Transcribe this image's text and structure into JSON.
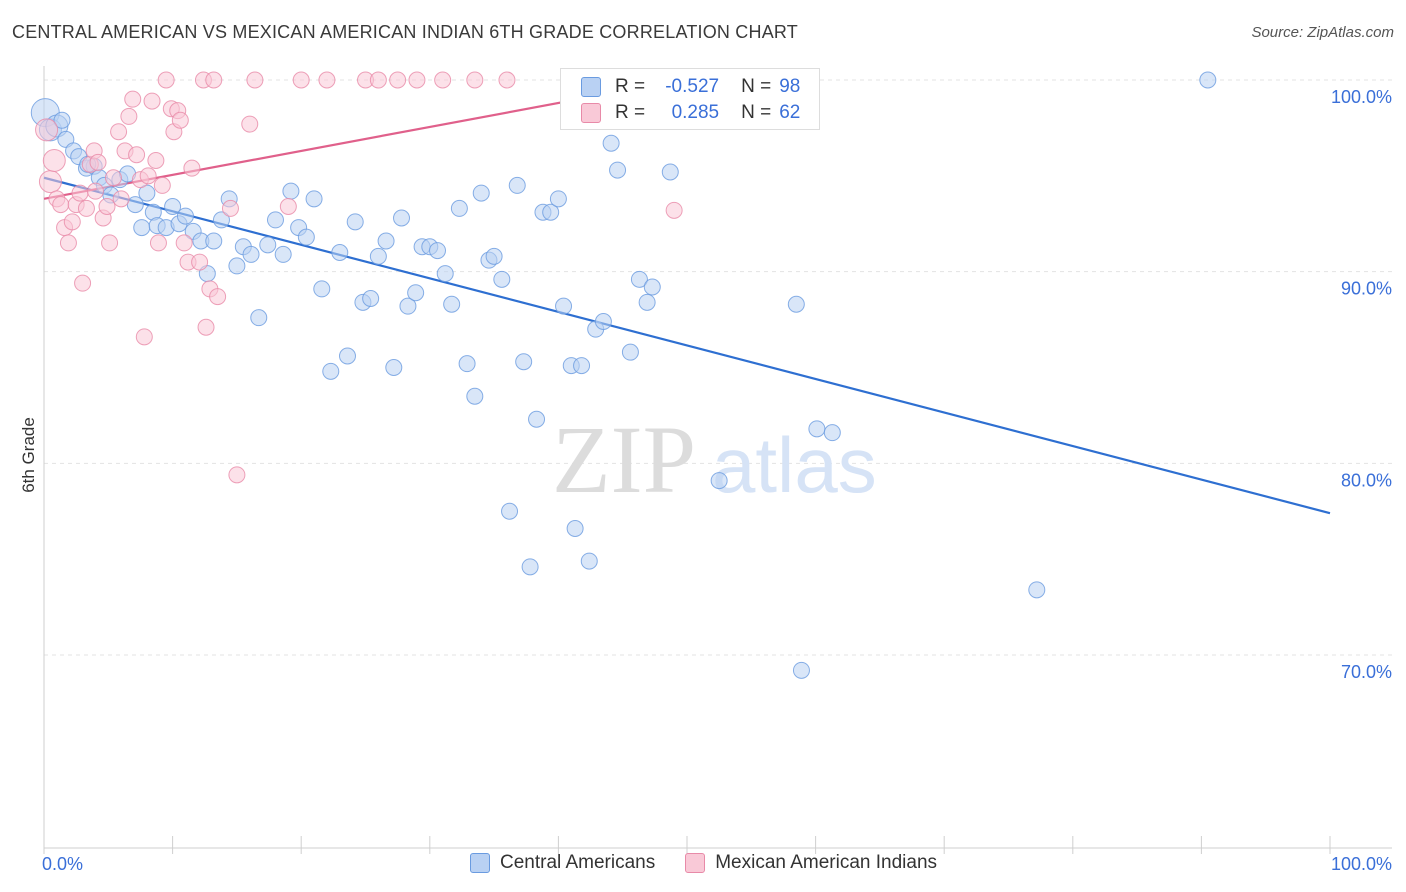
{
  "title": "CENTRAL AMERICAN VS MEXICAN AMERICAN INDIAN 6TH GRADE CORRELATION CHART",
  "source": "Source: ZipAtlas.com",
  "watermark": {
    "zip": "ZIP",
    "atlas": "atlas"
  },
  "legend": {
    "rows": [
      {
        "r_label": "R =",
        "r_value": "-0.527",
        "n_label": "N =",
        "n_value": "98",
        "color": "#a8c6f0",
        "border": "#5a8fdc"
      },
      {
        "r_label": "R =",
        "r_value": "0.285",
        "n_label": "N =",
        "n_value": "62",
        "color": "#f7bfd0",
        "border": "#e67fa0"
      }
    ]
  },
  "bottom_legend": [
    "Central Americans",
    "Mexican American Indians"
  ],
  "chart_data": {
    "type": "scatter",
    "title": "CENTRAL AMERICAN VS MEXICAN AMERICAN INDIAN 6TH GRADE CORRELATION CHART",
    "xlabel": "",
    "ylabel": "6th Grade",
    "xlim": [
      0,
      100
    ],
    "ylim": [
      60,
      101
    ],
    "x_tick_labels": [
      "0.0%",
      "100.0%"
    ],
    "y_ticks": [
      70,
      80,
      90,
      100
    ],
    "y_tick_labels": [
      "70.0%",
      "80.0%",
      "90.0%",
      "100.0%"
    ],
    "grid": true,
    "legend_position": "top-center",
    "series": [
      {
        "name": "Central Americans",
        "color": "#6a9be0",
        "fill": "#b9d1f3",
        "trend": {
          "x": [
            0,
            100
          ],
          "y": [
            94.9,
            77.4
          ]
        },
        "points": [
          [
            0.1,
            98.3
          ],
          [
            0.5,
            97.4
          ],
          [
            1.0,
            97.6
          ],
          [
            1.7,
            96.9
          ],
          [
            2.3,
            96.3
          ],
          [
            2.7,
            96.0
          ],
          [
            3.3,
            95.4
          ],
          [
            3.9,
            95.5
          ],
          [
            4.3,
            94.9
          ],
          [
            4.7,
            94.5
          ],
          [
            5.2,
            94.0
          ],
          [
            5.9,
            94.8
          ],
          [
            6.5,
            95.1
          ],
          [
            7.1,
            93.5
          ],
          [
            7.6,
            92.3
          ],
          [
            8.0,
            94.1
          ],
          [
            8.5,
            93.1
          ],
          [
            8.8,
            92.4
          ],
          [
            9.5,
            92.3
          ],
          [
            10.0,
            93.4
          ],
          [
            10.5,
            92.5
          ],
          [
            11.0,
            92.9
          ],
          [
            11.6,
            92.1
          ],
          [
            12.2,
            91.6
          ],
          [
            12.7,
            89.9
          ],
          [
            13.2,
            91.6
          ],
          [
            13.8,
            92.7
          ],
          [
            14.4,
            93.8
          ],
          [
            15.0,
            90.3
          ],
          [
            15.5,
            91.3
          ],
          [
            16.1,
            90.9
          ],
          [
            16.7,
            87.6
          ],
          [
            17.4,
            91.4
          ],
          [
            18.0,
            92.7
          ],
          [
            18.6,
            90.9
          ],
          [
            19.2,
            94.2
          ],
          [
            19.8,
            92.3
          ],
          [
            20.4,
            91.8
          ],
          [
            21.0,
            93.8
          ],
          [
            21.6,
            89.1
          ],
          [
            22.3,
            84.8
          ],
          [
            23.0,
            91.0
          ],
          [
            23.6,
            85.6
          ],
          [
            24.2,
            92.6
          ],
          [
            24.8,
            88.4
          ],
          [
            25.4,
            88.6
          ],
          [
            26.0,
            90.8
          ],
          [
            26.6,
            91.6
          ],
          [
            27.2,
            85.0
          ],
          [
            27.8,
            92.8
          ],
          [
            28.3,
            88.2
          ],
          [
            28.9,
            88.9
          ],
          [
            29.4,
            91.3
          ],
          [
            30.0,
            91.3
          ],
          [
            30.6,
            91.1
          ],
          [
            31.2,
            89.9
          ],
          [
            31.7,
            88.3
          ],
          [
            32.3,
            93.3
          ],
          [
            32.9,
            85.2
          ],
          [
            33.5,
            83.5
          ],
          [
            34.0,
            94.1
          ],
          [
            34.6,
            90.6
          ],
          [
            35.0,
            90.8
          ],
          [
            35.6,
            89.6
          ],
          [
            36.2,
            77.5
          ],
          [
            36.8,
            94.5
          ],
          [
            37.3,
            85.3
          ],
          [
            37.8,
            74.6
          ],
          [
            38.3,
            82.3
          ],
          [
            38.8,
            93.1
          ],
          [
            39.4,
            93.1
          ],
          [
            40.0,
            93.8
          ],
          [
            40.4,
            88.2
          ],
          [
            41.0,
            85.1
          ],
          [
            41.3,
            76.6
          ],
          [
            41.8,
            85.1
          ],
          [
            42.4,
            74.9
          ],
          [
            42.9,
            87.0
          ],
          [
            43.5,
            87.4
          ],
          [
            44.1,
            96.7
          ],
          [
            44.6,
            95.3
          ],
          [
            45.6,
            85.8
          ],
          [
            46.3,
            89.6
          ],
          [
            46.9,
            88.4
          ],
          [
            47.3,
            89.2
          ],
          [
            48.7,
            95.2
          ],
          [
            52.5,
            79.1
          ],
          [
            58.5,
            88.3
          ],
          [
            58.9,
            69.2
          ],
          [
            60.1,
            81.8
          ],
          [
            61.3,
            81.6
          ],
          [
            77.2,
            73.4
          ],
          [
            90.5,
            100.0
          ],
          [
            49.7,
            100.0
          ],
          [
            50.4,
            100.0
          ],
          [
            49.3,
            99.9
          ],
          [
            1.4,
            97.9
          ],
          [
            3.4,
            95.6
          ]
        ]
      },
      {
        "name": "Mexican American Indians",
        "color": "#e88aa8",
        "fill": "#f9c9d7",
        "trend": {
          "x": [
            0,
            48
          ],
          "y": [
            93.8,
            99.8
          ]
        },
        "points": [
          [
            0.2,
            97.4
          ],
          [
            0.5,
            94.7
          ],
          [
            0.8,
            95.8
          ],
          [
            1.0,
            93.8
          ],
          [
            1.3,
            93.5
          ],
          [
            1.6,
            92.3
          ],
          [
            1.9,
            91.5
          ],
          [
            2.2,
            92.6
          ],
          [
            2.5,
            93.5
          ],
          [
            2.8,
            94.1
          ],
          [
            3.0,
            89.4
          ],
          [
            3.3,
            93.3
          ],
          [
            3.6,
            95.6
          ],
          [
            3.9,
            96.3
          ],
          [
            4.2,
            95.7
          ],
          [
            4.6,
            92.8
          ],
          [
            4.9,
            93.4
          ],
          [
            5.1,
            91.5
          ],
          [
            5.4,
            94.9
          ],
          [
            5.8,
            97.3
          ],
          [
            6.0,
            93.8
          ],
          [
            6.3,
            96.3
          ],
          [
            6.6,
            98.1
          ],
          [
            6.9,
            99.0
          ],
          [
            7.2,
            96.1
          ],
          [
            7.5,
            94.8
          ],
          [
            7.8,
            86.6
          ],
          [
            8.1,
            95.0
          ],
          [
            8.4,
            98.9
          ],
          [
            8.7,
            95.8
          ],
          [
            8.9,
            91.5
          ],
          [
            9.2,
            94.5
          ],
          [
            9.5,
            100.0
          ],
          [
            9.9,
            98.5
          ],
          [
            10.1,
            97.3
          ],
          [
            10.4,
            98.4
          ],
          [
            10.6,
            97.9
          ],
          [
            10.9,
            91.5
          ],
          [
            11.2,
            90.5
          ],
          [
            11.5,
            95.4
          ],
          [
            12.1,
            90.5
          ],
          [
            12.4,
            100.0
          ],
          [
            12.6,
            87.1
          ],
          [
            12.9,
            89.1
          ],
          [
            13.2,
            100.0
          ],
          [
            13.5,
            88.7
          ],
          [
            14.5,
            93.3
          ],
          [
            15.0,
            79.4
          ],
          [
            16.0,
            97.7
          ],
          [
            16.4,
            100.0
          ],
          [
            19.0,
            93.4
          ],
          [
            20.0,
            100.0
          ],
          [
            22.0,
            100.0
          ],
          [
            25.0,
            100.0
          ],
          [
            26.0,
            100.0
          ],
          [
            27.5,
            100.0
          ],
          [
            29.0,
            100.0
          ],
          [
            31.0,
            100.0
          ],
          [
            33.5,
            100.0
          ],
          [
            36.0,
            100.0
          ],
          [
            49.0,
            93.2
          ],
          [
            4.0,
            94.2
          ]
        ]
      }
    ]
  }
}
